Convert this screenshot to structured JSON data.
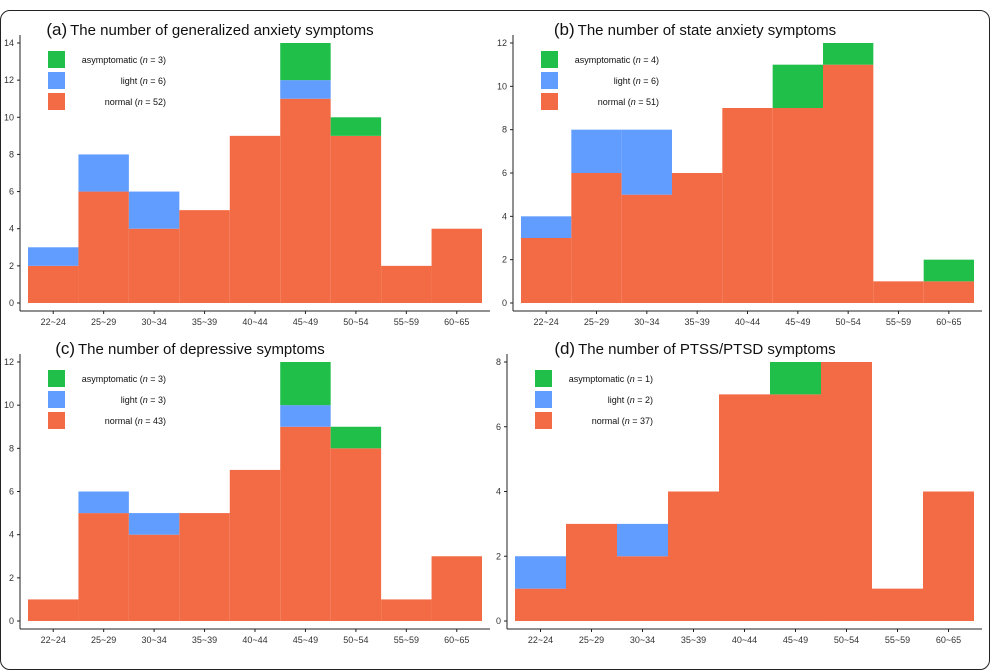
{
  "colors": {
    "normal": "#F26B45",
    "light": "#619CFF",
    "asymptomatic": "#1FBF4A"
  },
  "chart_data": [
    {
      "type": "bar",
      "stacked": true,
      "letter": "(a)",
      "title": "The number of generalized anxiety symptoms",
      "categories": [
        "22~24",
        "25~29",
        "30~34",
        "35~39",
        "40~44",
        "45~49",
        "50~54",
        "55~59",
        "60~65"
      ],
      "ylim": [
        0,
        14
      ],
      "yticks": [
        0,
        2,
        4,
        6,
        8,
        10,
        12,
        14
      ],
      "legend_position": "top-left",
      "series": [
        {
          "key": "normal",
          "legend_prefix": "normal (",
          "legend_n": "n",
          "legend_suffix": " = 52)",
          "values": [
            2,
            6,
            4,
            5,
            9,
            11,
            9,
            2,
            4
          ]
        },
        {
          "key": "light",
          "legend_prefix": "light (",
          "legend_n": "n",
          "legend_suffix": " = 6)",
          "values": [
            1,
            2,
            2,
            0,
            0,
            1,
            0,
            0,
            0
          ]
        },
        {
          "key": "asymptomatic",
          "legend_prefix": "asymptomatic (",
          "legend_n": "n",
          "legend_suffix": " = 3)",
          "values": [
            0,
            0,
            0,
            0,
            0,
            2,
            1,
            0,
            0
          ]
        }
      ]
    },
    {
      "type": "bar",
      "stacked": true,
      "letter": "(b)",
      "title": "The number of state anxiety symptoms",
      "categories": [
        "22~24",
        "25~29",
        "30~34",
        "35~39",
        "40~44",
        "45~49",
        "50~54",
        "55~59",
        "60~65"
      ],
      "ylim": [
        0,
        12
      ],
      "yticks": [
        0,
        2,
        4,
        6,
        8,
        10,
        12
      ],
      "legend_position": "top-left",
      "series": [
        {
          "key": "normal",
          "legend_prefix": "normal (",
          "legend_n": "n",
          "legend_suffix": " = 51)",
          "values": [
            3,
            6,
            5,
            6,
            9,
            9,
            11,
            1,
            1
          ]
        },
        {
          "key": "light",
          "legend_prefix": "light (",
          "legend_n": "n",
          "legend_suffix": " = 6)",
          "values": [
            1,
            2,
            3,
            0,
            0,
            0,
            0,
            0,
            0
          ]
        },
        {
          "key": "asymptomatic",
          "legend_prefix": "asymptomatic (",
          "legend_n": "n",
          "legend_suffix": " = 4)",
          "values": [
            0,
            0,
            0,
            0,
            0,
            2,
            1,
            0,
            1
          ]
        }
      ]
    },
    {
      "type": "bar",
      "stacked": true,
      "letter": "(c)",
      "title": "The number of depressive symptoms",
      "categories": [
        "22~24",
        "25~29",
        "30~34",
        "35~39",
        "40~44",
        "45~49",
        "50~54",
        "55~59",
        "60~65"
      ],
      "ylim": [
        0,
        12
      ],
      "yticks": [
        0,
        2,
        4,
        6,
        8,
        10,
        12
      ],
      "legend_position": "top-left",
      "series": [
        {
          "key": "normal",
          "legend_prefix": "normal (",
          "legend_n": "n",
          "legend_suffix": " = 43)",
          "values": [
            1,
            5,
            4,
            5,
            7,
            9,
            8,
            1,
            3
          ]
        },
        {
          "key": "light",
          "legend_prefix": "light (",
          "legend_n": "n",
          "legend_suffix": " = 3)",
          "values": [
            0,
            1,
            1,
            0,
            0,
            1,
            0,
            0,
            0
          ]
        },
        {
          "key": "asymptomatic",
          "legend_prefix": "asymptomatic (",
          "legend_n": "n",
          "legend_suffix": " = 3)",
          "values": [
            0,
            0,
            0,
            0,
            0,
            2,
            1,
            0,
            0
          ]
        }
      ]
    },
    {
      "type": "bar",
      "stacked": true,
      "letter": "(d)",
      "title": "The number of PTSS/PTSD symptoms",
      "categories": [
        "22~24",
        "25~29",
        "30~34",
        "35~39",
        "40~44",
        "45~49",
        "50~54",
        "55~59",
        "60~65"
      ],
      "ylim": [
        0,
        8
      ],
      "yticks": [
        0,
        2,
        4,
        6,
        8
      ],
      "legend_position": "top-left",
      "series": [
        {
          "key": "normal",
          "legend_prefix": "normal (",
          "legend_n": "n",
          "legend_suffix": " = 37)",
          "values": [
            1,
            3,
            2,
            4,
            7,
            7,
            8,
            1,
            4
          ]
        },
        {
          "key": "light",
          "legend_prefix": "light (",
          "legend_n": "n",
          "legend_suffix": " = 2)",
          "values": [
            1,
            0,
            1,
            0,
            0,
            0,
            0,
            0,
            0
          ]
        },
        {
          "key": "asymptomatic",
          "legend_prefix": "asymptomatic (",
          "legend_n": "n",
          "legend_suffix": " = 1)",
          "values": [
            0,
            0,
            0,
            0,
            0,
            1,
            0,
            0,
            0
          ]
        }
      ]
    }
  ]
}
